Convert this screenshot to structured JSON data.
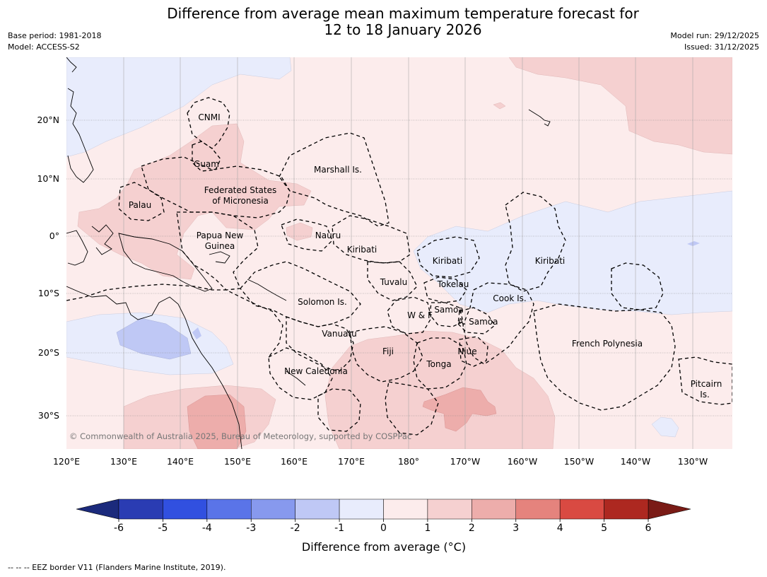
{
  "title_line1": "Difference from average mean maximum temperature forecast for",
  "title_line2": "12 to 18 January 2026",
  "meta": {
    "base_period": "Base period: 1981-2018",
    "model": "Model: ACCESS-S2",
    "model_run": "Model run: 29/12/2025",
    "issued": "Issued: 31/12/2025"
  },
  "map": {
    "lon_labels": [
      "120°E",
      "130°E",
      "140°E",
      "150°E",
      "160°E",
      "170°E",
      "180°",
      "170°W",
      "160°W",
      "150°W",
      "140°W",
      "130°W"
    ],
    "lat_labels": [
      "20°N",
      "10°N",
      "0°",
      "10°S",
      "20°S",
      "30°S"
    ],
    "copyright": "© Commonwealth of Australia 2025, Bureau of Meteorology, supported by COSPPac",
    "regions": [
      {
        "id": "cnmi",
        "label": "CNMI"
      },
      {
        "id": "guam",
        "label": "Guam"
      },
      {
        "id": "marshall",
        "label": "Marshall Is."
      },
      {
        "id": "fsm1",
        "label": "Federated States"
      },
      {
        "id": "fsm2",
        "label": "of Micronesia"
      },
      {
        "id": "palau",
        "label": "Palau"
      },
      {
        "id": "png1",
        "label": "Papua New"
      },
      {
        "id": "png2",
        "label": "Guinea"
      },
      {
        "id": "nauru",
        "label": "Nauru"
      },
      {
        "id": "kiribati_w",
        "label": "Kiribati"
      },
      {
        "id": "kiribati_c",
        "label": "Kiribati"
      },
      {
        "id": "kiribati_e",
        "label": "Kiribati"
      },
      {
        "id": "tuvalu",
        "label": "Tuvalu"
      },
      {
        "id": "tokelau",
        "label": "Tokelau"
      },
      {
        "id": "cook",
        "label": "Cook Is."
      },
      {
        "id": "solomon",
        "label": "Solomon Is."
      },
      {
        "id": "samoa",
        "label": "Samoa"
      },
      {
        "id": "wf",
        "label": "W & F"
      },
      {
        "id": "asamoa",
        "label": "A. Samoa"
      },
      {
        "id": "vanuatu",
        "label": "Vanuatu"
      },
      {
        "id": "fiji",
        "label": "Fiji"
      },
      {
        "id": "niue",
        "label": "Niue"
      },
      {
        "id": "frpoly",
        "label": "French Polynesia"
      },
      {
        "id": "tonga",
        "label": "Tonga"
      },
      {
        "id": "newcal",
        "label": "New Caledonia"
      },
      {
        "id": "pitcairn1",
        "label": "Pitcairn"
      },
      {
        "id": "pitcairn2",
        "label": "Is."
      }
    ]
  },
  "colorbar": {
    "title": "Difference from average (°C)",
    "ticks": [
      "-6",
      "-5",
      "-4",
      "-3",
      "-2",
      "-1",
      "0",
      "1",
      "2",
      "3",
      "4",
      "5",
      "6"
    ],
    "colors": [
      "#2a3cb3",
      "#3150e0",
      "#5a74e8",
      "#8799ee",
      "#bfc8f5",
      "#e8ecfc",
      "#fcecec",
      "#f5d0d0",
      "#edadab",
      "#e5837d",
      "#d94a42",
      "#ad2820"
    ],
    "under_color": "#1b2a7c",
    "over_color": "#7a1b16"
  },
  "footer": "--  --  -- EEZ border V11 (Flanders Marine Institute, 2019)."
}
